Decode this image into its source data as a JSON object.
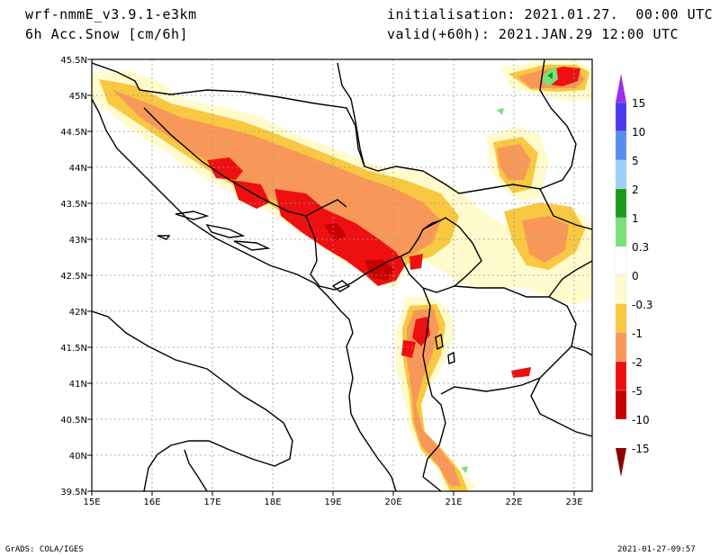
{
  "header": {
    "model": "wrf-nmmE_v3.9.1-e3km",
    "variable": "6h Acc.Snow [cm/6h]",
    "init": "initialisation: 2021.01.27.  00:00 UTC",
    "valid": "valid(+60h): 2021.JAN.29 12:00 UTC"
  },
  "map": {
    "lon_labels": [
      "15E",
      "16E",
      "17E",
      "18E",
      "19E",
      "20E",
      "21E",
      "22E",
      "23E"
    ],
    "lat_labels": [
      "39.5N",
      "40N",
      "40.5N",
      "41N",
      "41.5N",
      "42N",
      "42.5N",
      "43N",
      "43.5N",
      "44N",
      "44.5N",
      "45N",
      "45.5N"
    ],
    "lon_range": [
      15,
      23.2
    ],
    "lat_range": [
      39.5,
      45.5
    ],
    "grid": true
  },
  "colorbar": {
    "labels": [
      "15",
      "10",
      "5",
      "2",
      "1",
      "0.3",
      "0",
      "-0.3",
      "-1",
      "-2",
      "-5",
      "-10",
      "-15"
    ],
    "colors": [
      "#8a2be2",
      "#4a3bf0",
      "#5a8cf0",
      "#9fd0f8",
      "#1a9a1a",
      "#7ae07a",
      "#ffffff",
      "#fffbcc",
      "#f8c840",
      "#f89858",
      "#ee1010",
      "#c80000",
      "#8b0000"
    ],
    "top_arrow_color": "#9a30e8",
    "bottom_arrow_color": "#8b0000"
  },
  "footer": {
    "left": "GrADS: COLA/IGES",
    "right": "2021-01-27-09:57"
  }
}
